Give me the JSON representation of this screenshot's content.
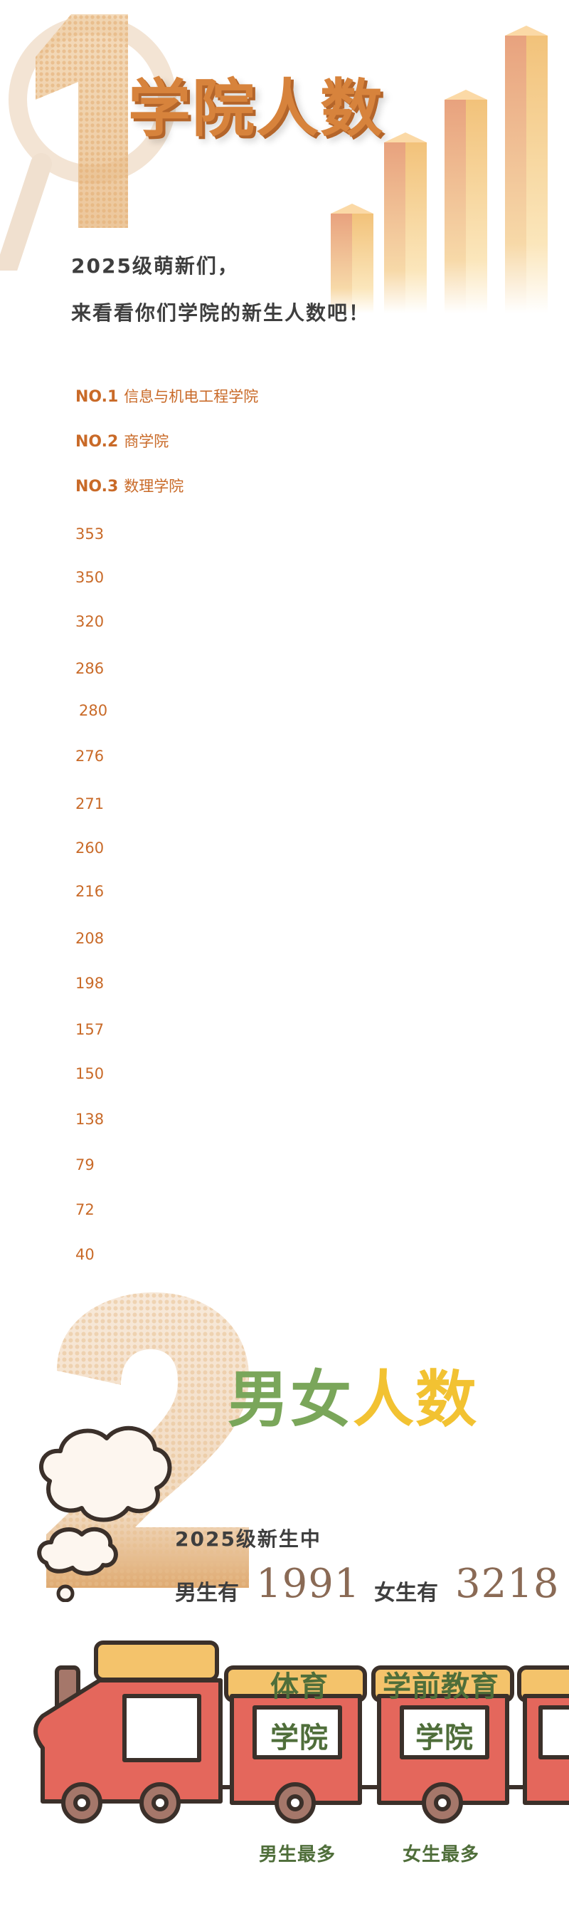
{
  "section1": {
    "title": "学院人数",
    "greeting_line1": "2025级萌新们，",
    "greeting_line2": "来看看你们学院的新生人数吧！",
    "top3": [
      {
        "rank": "NO.1",
        "name": "信息与机电工程学院"
      },
      {
        "rank": "NO.2",
        "name": "商学院"
      },
      {
        "rank": "NO.3",
        "name": "数理学院"
      }
    ],
    "counts": [
      "353",
      "350",
      "320",
      "286",
      "280",
      "276",
      "271",
      "260",
      "216",
      "208",
      "198",
      "157",
      "150",
      "138",
      "79",
      "72",
      "40"
    ]
  },
  "section2": {
    "title_male": "男女",
    "title_rest": "人数",
    "caption": "2025级新生中",
    "male_label": "男生有",
    "male_count": "1991",
    "female_label": "女生有",
    "female_count": "3218",
    "car1_top": "体育",
    "car1_bottom": "学院",
    "car2_top": "学前教育",
    "car2_bottom": "学院",
    "male_most": "男生最多",
    "female_most": "女生最多"
  },
  "colors": {
    "accent_orange": "#d7833c",
    "rank_text": "#c96a28",
    "male_green": "#7aa65a",
    "female_yellow": "#f2c232",
    "train_red": "#e4675c",
    "train_roof": "#f4c36b"
  }
}
